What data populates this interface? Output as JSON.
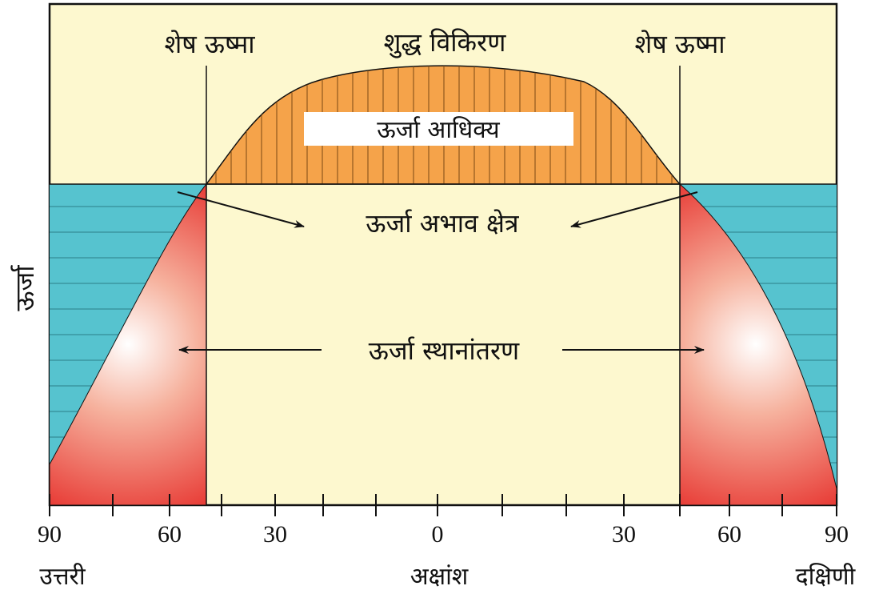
{
  "labels": {
    "residual_heat_left": "शेष ऊष्मा",
    "net_radiation": "शुद्ध विकिरण",
    "residual_heat_right": "शेष ऊष्मा",
    "energy_surplus": "ऊर्जा आधिक्य",
    "energy_deficit_zone": "ऊर्जा अभाव क्षेत्र",
    "energy_transfer": "ऊर्जा स्थानांतरण",
    "y_axis": "ऊर्जा",
    "x_axis": "अक्षांश",
    "north": "उत्तरी",
    "south": "दक्षिणी"
  },
  "x_ticks": [
    "90",
    "60",
    "30",
    "0",
    "30",
    "60",
    "90"
  ],
  "colors": {
    "background_panel": "#fdf8cf",
    "surplus_fill": "#f5a34a",
    "deficit_fill": "#56c3cf",
    "transfer_gradient_center": "#ffffff",
    "transfer_gradient_edge": "#e52421",
    "line": "#111111"
  }
}
